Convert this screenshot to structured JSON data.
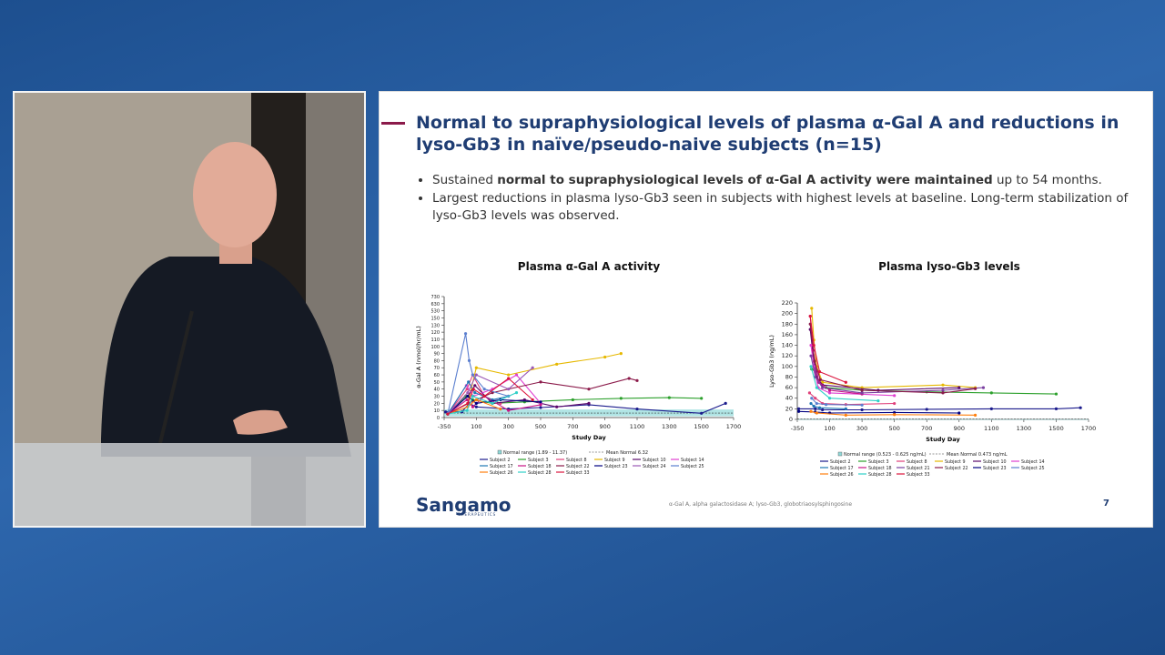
{
  "slide": {
    "title": "Normal to supraphysiological levels of plasma α-Gal A and reductions in lyso-Gb3 in naïve/pseudo-naive subjects (n=15)",
    "bullets": [
      [
        {
          "text": "Sustained "
        },
        {
          "text": "normal to supraphysiological levels of α-Gal A activity were maintained",
          "bold": true
        },
        {
          "text": " up to 54 months."
        }
      ],
      [
        {
          "text": "Largest reductions in plasma lyso-Gb3 seen in subjects with highest levels at baseline. Long-term stabilization of lyso-Gb3 levels was observed."
        }
      ]
    ],
    "footer": {
      "logo": "Sangamo",
      "logo_sub": "THERAPEUTICS",
      "footnote": "α-Gal A, alpha galactosidase A; lyso-Gb3, globotriaosylsphingosine",
      "page": "7"
    }
  },
  "chart_data": [
    {
      "type": "line",
      "title": "Plasma α-Gal A activity",
      "x_label": "Study Day",
      "y_label": "α-Gal A (nmol/hr/mL)",
      "xlim": [
        -350,
        1700
      ],
      "xticks": [
        -350,
        100,
        300,
        500,
        700,
        900,
        1100,
        1300,
        1500,
        1700
      ],
      "ylim": [
        0,
        730
      ],
      "yticks": [
        0,
        10,
        20,
        30,
        40,
        50,
        60,
        70,
        80,
        90,
        100,
        110,
        120,
        130,
        150,
        530,
        630,
        730
      ],
      "normal_range": {
        "low": 1.89,
        "high": 11.37,
        "label": "Normal range (1.89 - 11.37)",
        "color": "#8fd8d8"
      },
      "mean_normal": {
        "value": 6.32,
        "label": "Mean Normal 6.32"
      },
      "series": [
        {
          "name": "Subject 2",
          "color": "#1a1a8c",
          "x": [
            -330,
            -100,
            0,
            100,
            300,
            500,
            800,
            1100,
            1500,
            1650
          ],
          "values": [
            8,
            8,
            20,
            15,
            12,
            14,
            18,
            12,
            6,
            20
          ]
        },
        {
          "name": "Subject 3",
          "color": "#2ca02c",
          "x": [
            -300,
            -50,
            50,
            200,
            400,
            700,
            1000,
            1300,
            1500
          ],
          "values": [
            5,
            30,
            25,
            20,
            22,
            25,
            27,
            28,
            27
          ]
        },
        {
          "name": "Subject 8",
          "color": "#e0407a",
          "x": [
            -300,
            -30,
            50,
            150,
            250
          ],
          "values": [
            5,
            40,
            60,
            30,
            20
          ]
        },
        {
          "name": "Subject 9",
          "color": "#e6b800",
          "x": [
            -300,
            -20,
            100,
            300,
            600,
            900,
            1000
          ],
          "values": [
            5,
            20,
            70,
            60,
            75,
            85,
            90
          ]
        },
        {
          "name": "Subject 10",
          "color": "#5b0a6b",
          "x": [
            -300,
            -20,
            80,
            200,
            400,
            600,
            800
          ],
          "values": [
            5,
            30,
            45,
            20,
            25,
            15,
            20
          ]
        },
        {
          "name": "Subject 14",
          "color": "#e040d0",
          "x": [
            -300,
            -40,
            60,
            200,
            350,
            500
          ],
          "values": [
            5,
            45,
            30,
            40,
            60,
            20
          ]
        },
        {
          "name": "Subject 17",
          "color": "#1f77b4",
          "x": [
            -300,
            -10,
            80,
            200,
            300
          ],
          "values": [
            5,
            50,
            35,
            25,
            30
          ]
        },
        {
          "name": "Subject 18",
          "color": "#c71585",
          "x": [
            -300,
            -30,
            50,
            150,
            300,
            500
          ],
          "values": [
            5,
            25,
            15,
            30,
            10,
            18
          ]
        },
        {
          "name": "Subject 22",
          "color": "#8b1a4a",
          "x": [
            -300,
            -10,
            200,
            500,
            800,
            1050,
            1100
          ],
          "values": [
            5,
            20,
            35,
            50,
            40,
            55,
            52
          ]
        },
        {
          "name": "Subject 23",
          "color": "#000080",
          "x": [
            -300,
            -20,
            100,
            250,
            500
          ],
          "values": [
            5,
            30,
            20,
            25,
            22
          ]
        },
        {
          "name": "Subject 24",
          "color": "#9b59b6",
          "x": [
            -300,
            -20,
            100,
            300,
            450
          ],
          "values": [
            5,
            35,
            60,
            40,
            70
          ]
        },
        {
          "name": "Subject 25",
          "color": "#5b7fcf",
          "x": [
            -300,
            -50,
            0,
            50,
            150,
            300
          ],
          "values": [
            5,
            118,
            80,
            60,
            40,
            30
          ]
        },
        {
          "name": "Subject 26",
          "color": "#ff7f0e",
          "x": [
            -300,
            -20,
            100,
            250
          ],
          "values": [
            5,
            15,
            25,
            12
          ]
        },
        {
          "name": "Subject 28",
          "color": "#30d0c8",
          "x": [
            -300,
            -30,
            50,
            200,
            350
          ],
          "values": [
            5,
            10,
            30,
            20,
            35
          ]
        },
        {
          "name": "Subject 33",
          "color": "#dc143c",
          "x": [
            -300,
            -20,
            60,
            150,
            300,
            450
          ],
          "values": [
            5,
            20,
            40,
            30,
            55,
            25
          ]
        }
      ]
    },
    {
      "type": "line",
      "title": "Plasma lyso-Gb3 levels",
      "x_label": "Study Day",
      "y_label": "Lyso-Gb3 (ng/mL)",
      "xlim": [
        -350,
        1700
      ],
      "xticks": [
        -350,
        100,
        300,
        500,
        700,
        900,
        1100,
        1300,
        1500,
        1700
      ],
      "ylim": [
        0,
        220
      ],
      "yticks": [
        0,
        20,
        40,
        60,
        80,
        100,
        120,
        140,
        160,
        180,
        200,
        220
      ],
      "normal_range": {
        "low": 0.523,
        "high": 0.625,
        "label": "Normal range (0.523 - 0.625 ng/mL)",
        "color": "#8fd8d8"
      },
      "mean_normal": {
        "value": 0.473,
        "label": "Mean Normal 0.473 ng/mL"
      },
      "series": [
        {
          "name": "Subject 2",
          "color": "#1a1a8c",
          "x": [
            -330,
            -100,
            0,
            300,
            700,
            1100,
            1500,
            1650
          ],
          "values": [
            20,
            20,
            18,
            18,
            19,
            20,
            20,
            22
          ]
        },
        {
          "name": "Subject 3",
          "color": "#2ca02c",
          "x": [
            -150,
            -100,
            -50,
            50,
            300,
            700,
            1100,
            1500
          ],
          "values": [
            95,
            90,
            70,
            60,
            55,
            52,
            50,
            48
          ]
        },
        {
          "name": "Subject 8",
          "color": "#e0407a",
          "x": [
            -180,
            -100,
            0,
            200,
            500
          ],
          "values": [
            50,
            40,
            30,
            28,
            30
          ]
        },
        {
          "name": "Subject 9",
          "color": "#e6b800",
          "x": [
            -150,
            -120,
            -80,
            0,
            300,
            800,
            1000
          ],
          "values": [
            210,
            150,
            100,
            70,
            60,
            65,
            60
          ]
        },
        {
          "name": "Subject 10",
          "color": "#5b0a6b",
          "x": [
            -170,
            -130,
            -80,
            0,
            400,
            900
          ],
          "values": [
            170,
            120,
            80,
            65,
            55,
            60
          ]
        },
        {
          "name": "Subject 14",
          "color": "#e040d0",
          "x": [
            -160,
            -120,
            -60,
            100,
            500
          ],
          "values": [
            140,
            100,
            60,
            50,
            45
          ]
        },
        {
          "name": "Subject 17",
          "color": "#1f77b4",
          "x": [
            -160,
            -120,
            -40,
            200
          ],
          "values": [
            30,
            25,
            22,
            20
          ]
        },
        {
          "name": "Subject 18",
          "color": "#c71585",
          "x": [
            -170,
            -130,
            -50,
            100,
            300
          ],
          "values": [
            195,
            130,
            70,
            55,
            48
          ]
        },
        {
          "name": "Subject 21",
          "color": "#7a3fa0",
          "x": [
            -160,
            -100,
            0,
            300,
            800,
            1050
          ],
          "values": [
            120,
            80,
            60,
            50,
            55,
            60
          ]
        },
        {
          "name": "Subject 22",
          "color": "#8b1a4a",
          "x": [
            -170,
            -110,
            -30,
            300,
            800,
            1000
          ],
          "values": [
            180,
            110,
            75,
            55,
            50,
            58
          ]
        },
        {
          "name": "Subject 23",
          "color": "#000080",
          "x": [
            -330,
            -100,
            100,
            500,
            900
          ],
          "values": [
            15,
            14,
            12,
            13,
            12
          ]
        },
        {
          "name": "Subject 25",
          "color": "#5b7fcf",
          "x": [
            -150,
            -80,
            50,
            300
          ],
          "values": [
            40,
            30,
            28,
            27
          ]
        },
        {
          "name": "Subject 26",
          "color": "#ff7f0e",
          "x": [
            -160,
            -80,
            200,
            500,
            1000
          ],
          "values": [
            15,
            12,
            8,
            9,
            8
          ]
        },
        {
          "name": "Subject 28",
          "color": "#30d0c8",
          "x": [
            -160,
            -80,
            100,
            400
          ],
          "values": [
            100,
            60,
            40,
            35
          ]
        },
        {
          "name": "Subject 33",
          "color": "#dc143c",
          "x": [
            -170,
            -120,
            -40,
            200
          ],
          "values": [
            195,
            140,
            90,
            70
          ]
        }
      ]
    }
  ]
}
